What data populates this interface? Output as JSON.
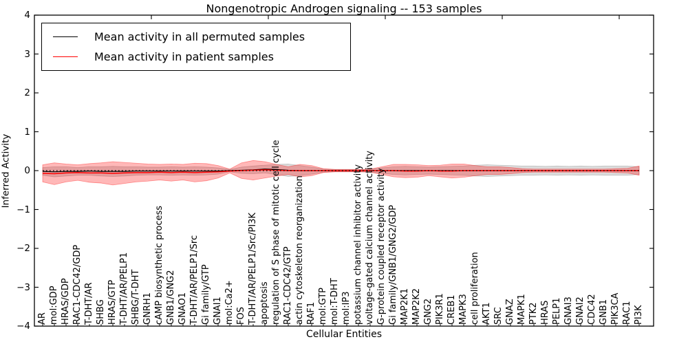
{
  "chart_data": {
    "type": "line",
    "title": "Nongenotropic Androgen signaling -- 153 samples",
    "xlabel": "Cellular Entities",
    "ylabel": "Inferred Activity",
    "ylim": [
      -4,
      4
    ],
    "ytick_values": [
      4,
      3,
      2,
      1,
      0,
      -1,
      -2,
      -3,
      -4
    ],
    "ytick_labels": [
      "4",
      "3",
      "2",
      "1",
      "0",
      "−1",
      "−2",
      "−3",
      "−4"
    ],
    "grid": false,
    "legend_position": "upper left",
    "background": "#ffffff",
    "categories": [
      "AR",
      "mol:GDP",
      "HRAS/GDP",
      "RAC1-CDC42/GDP",
      "T-DHT/AR",
      "SHBG",
      "HRAS/GTP",
      "T-DHT/AR/PELP1",
      "SHBG/T-DHT",
      "GNRH1",
      "cAMP biosynthetic process",
      "GNB1/GNG2",
      "GNAO1",
      "T-DHT/AR/PELP1/Src",
      "Gi family/GTP",
      "GNAI1",
      "mol:Ca2+",
      "FOS",
      "T-DHT/AR/PELP1/Src/PI3K",
      "apoptosis",
      "regulation of S phase of mitotic cell cycle",
      "RAC1-CDC42/GTP",
      "actin cytoskeleton reorganization",
      "RAF1",
      "mol:GTP",
      "mol:T-DHT",
      "mol:IP3",
      "potassium channel inhibitor activity",
      "voltage-gated calcium channel activity",
      "G-protein coupled receptor activity",
      "Gi family/GNB1/GNG2/GDP",
      "MAP2K1",
      "MAP2K2",
      "GNG2",
      "PIK3R1",
      "CREB1",
      "MAPK3",
      "cell proliferation",
      "AKT1",
      "SRC",
      "GNAZ",
      "MAPK1",
      "PTK2",
      "HRAS",
      "PELP1",
      "GNAI3",
      "GNAI2",
      "CDC42",
      "GNB1",
      "PIK3CA",
      "RAC1",
      "PI3K"
    ],
    "series": [
      {
        "name": "Mean activity in all permuted samples",
        "color": "#000000",
        "line_style": "solid",
        "band_fill": "#dbdbdb",
        "band_edge": "rgba(110,110,110,0.35)",
        "values": [
          -0.02,
          -0.03,
          -0.02,
          -0.02,
          -0.01,
          -0.02,
          -0.02,
          -0.02,
          -0.01,
          -0.01,
          -0.01,
          -0.01,
          -0.01,
          -0.01,
          -0.01,
          -0.01,
          0,
          0.01,
          0.02,
          0.04,
          0.03,
          0.01,
          0,
          0,
          0,
          0,
          0,
          0,
          0,
          0,
          0,
          0,
          0,
          0,
          0,
          0,
          0,
          0,
          0,
          0,
          0,
          0,
          0,
          0,
          0,
          0,
          0,
          0,
          0,
          0,
          0,
          0
        ],
        "band_half_widths": [
          0.1,
          0.13,
          0.12,
          0.1,
          0.11,
          0.12,
          0.13,
          0.12,
          0.11,
          0.1,
          0.1,
          0.11,
          0.1,
          0.11,
          0.1,
          0.08,
          0.03,
          0.08,
          0.1,
          0.1,
          0.13,
          0.16,
          0.13,
          0.09,
          0.04,
          0.03,
          0.03,
          0.03,
          0.04,
          0.07,
          0.1,
          0.11,
          0.1,
          0.09,
          0.1,
          0.11,
          0.12,
          0.14,
          0.15,
          0.14,
          0.13,
          0.12,
          0.12,
          0.11,
          0.12,
          0.11,
          0.12,
          0.11,
          0.12,
          0.12,
          0.12,
          0.1
        ]
      },
      {
        "name": "Mean activity in patient samples",
        "color": "#ff0000",
        "line_style": "solid",
        "band_fill": "rgba(255,0,0,0.28)",
        "band_edge": "rgba(255,0,0,0.4)",
        "values": [
          -0.07,
          -0.08,
          -0.06,
          -0.05,
          -0.06,
          -0.06,
          -0.07,
          -0.06,
          -0.05,
          -0.05,
          -0.04,
          -0.05,
          -0.04,
          -0.05,
          -0.04,
          -0.03,
          -0.01,
          0,
          0.01,
          0.02,
          0.01,
          0,
          0,
          0,
          0,
          0,
          0,
          0,
          0,
          0,
          0,
          -0.01,
          -0.01,
          0,
          -0.01,
          -0.01,
          0,
          0,
          0,
          0,
          0,
          0,
          0,
          0,
          0,
          0,
          0,
          0,
          0,
          0,
          0,
          0
        ],
        "band_half_widths": [
          0.22,
          0.28,
          0.23,
          0.2,
          0.24,
          0.26,
          0.3,
          0.27,
          0.24,
          0.22,
          0.2,
          0.22,
          0.2,
          0.24,
          0.22,
          0.16,
          0.05,
          0.2,
          0.25,
          0.21,
          0.15,
          0.1,
          0.16,
          0.13,
          0.05,
          0.03,
          0.03,
          0.03,
          0.04,
          0.1,
          0.16,
          0.17,
          0.16,
          0.13,
          0.15,
          0.18,
          0.17,
          0.13,
          0.1,
          0.1,
          0.08,
          0.05,
          0.04,
          0.04,
          0.04,
          0.04,
          0.04,
          0.04,
          0.04,
          0.05,
          0.06,
          0.12
        ]
      }
    ],
    "zero_line": {
      "value": 0,
      "style": "dotted",
      "color": "#000000"
    }
  }
}
